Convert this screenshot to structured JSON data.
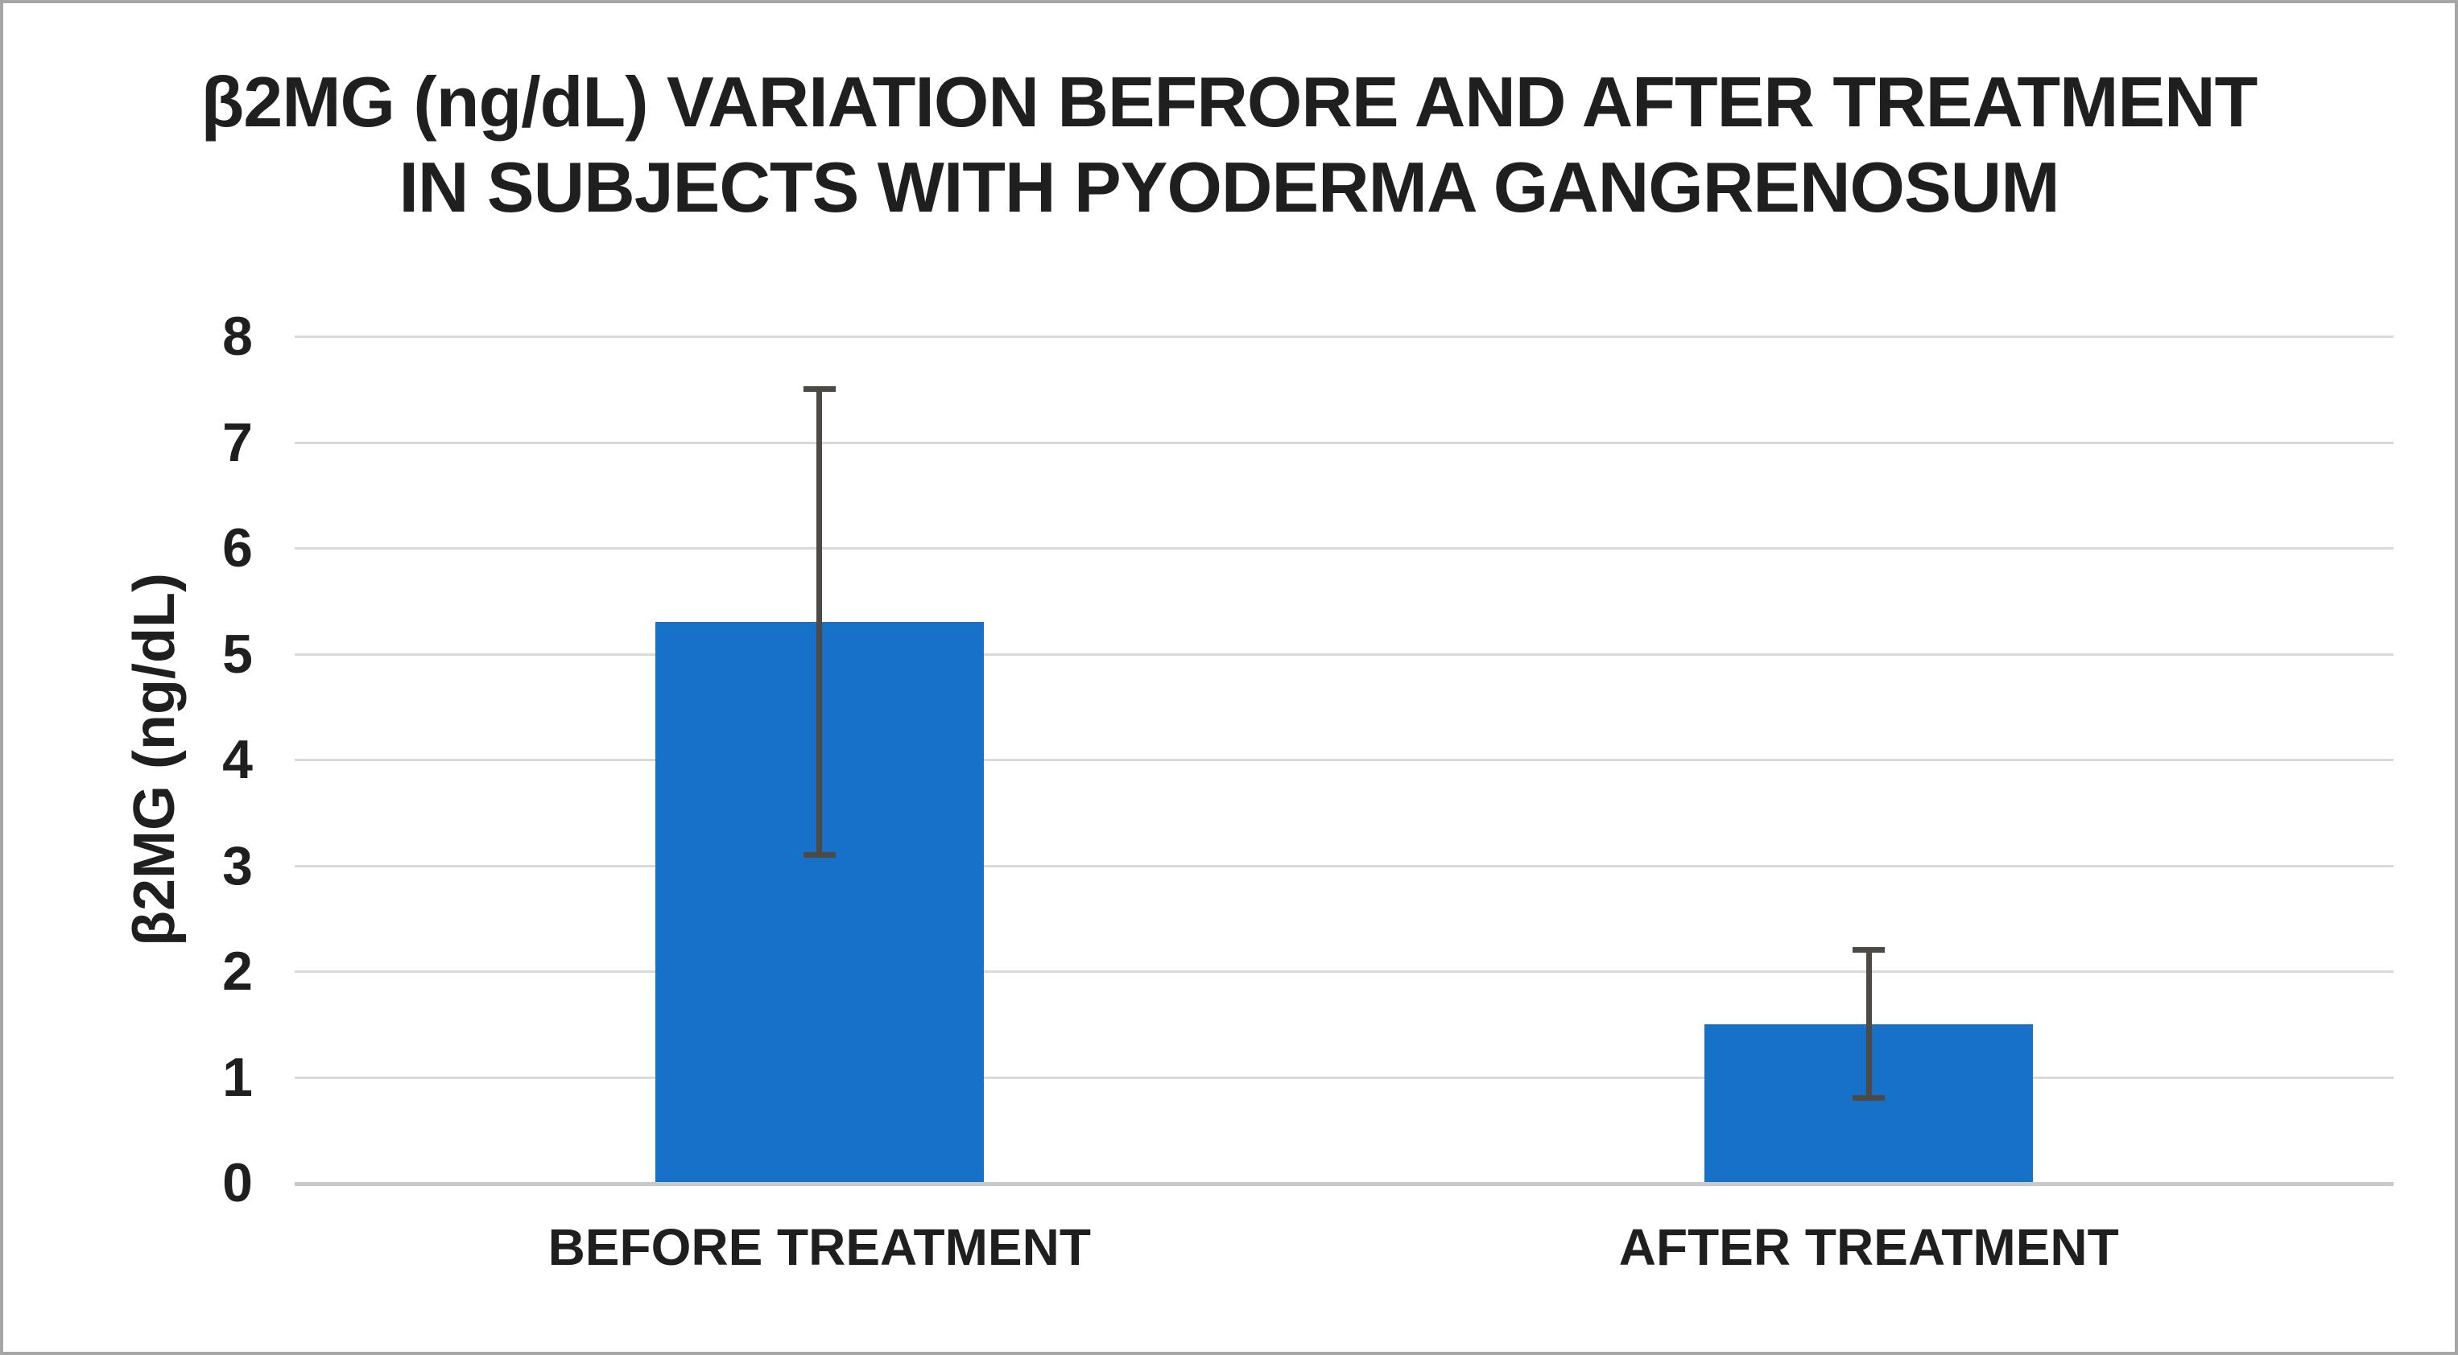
{
  "figure": {
    "title_line1": "β2MG (ng/dL) VARIATION BEFRORE AND AFTER TREATMENT",
    "title_line2": "IN SUBJECTS WITH PYODERMA GANGRENOSUM",
    "y_axis_title": "β2MG (ng/dL)"
  },
  "colors": {
    "bar_fill": "#1772C7",
    "error_bar": "#4D4A45",
    "gridline": "#D9D9D9",
    "axis_line": "#C9C9C9",
    "text": "#1F1F1F",
    "border": "#A6A6A6",
    "background": "#FFFFFF"
  },
  "chart_data": {
    "type": "bar",
    "title": "β2MG (ng/dL) VARIATION BEFRORE AND AFTER TREATMENT IN SUBJECTS WITH PYODERMA GANGRENOSUM",
    "categories": [
      "BEFORE TREATMENT",
      "AFTER TREATMENT"
    ],
    "series": [
      {
        "name": "β2MG (ng/dL)",
        "values": [
          5.3,
          1.5
        ],
        "error_plus": [
          2.2,
          0.7
        ],
        "error_minus": [
          2.2,
          0.7
        ]
      }
    ],
    "xlabel": "",
    "ylabel": "β2MG (ng/dL)",
    "ylim": [
      0,
      8
    ],
    "yticks": [
      0,
      1,
      2,
      3,
      4,
      5,
      6,
      7,
      8
    ],
    "grid": "horizontal",
    "legend": "none"
  }
}
